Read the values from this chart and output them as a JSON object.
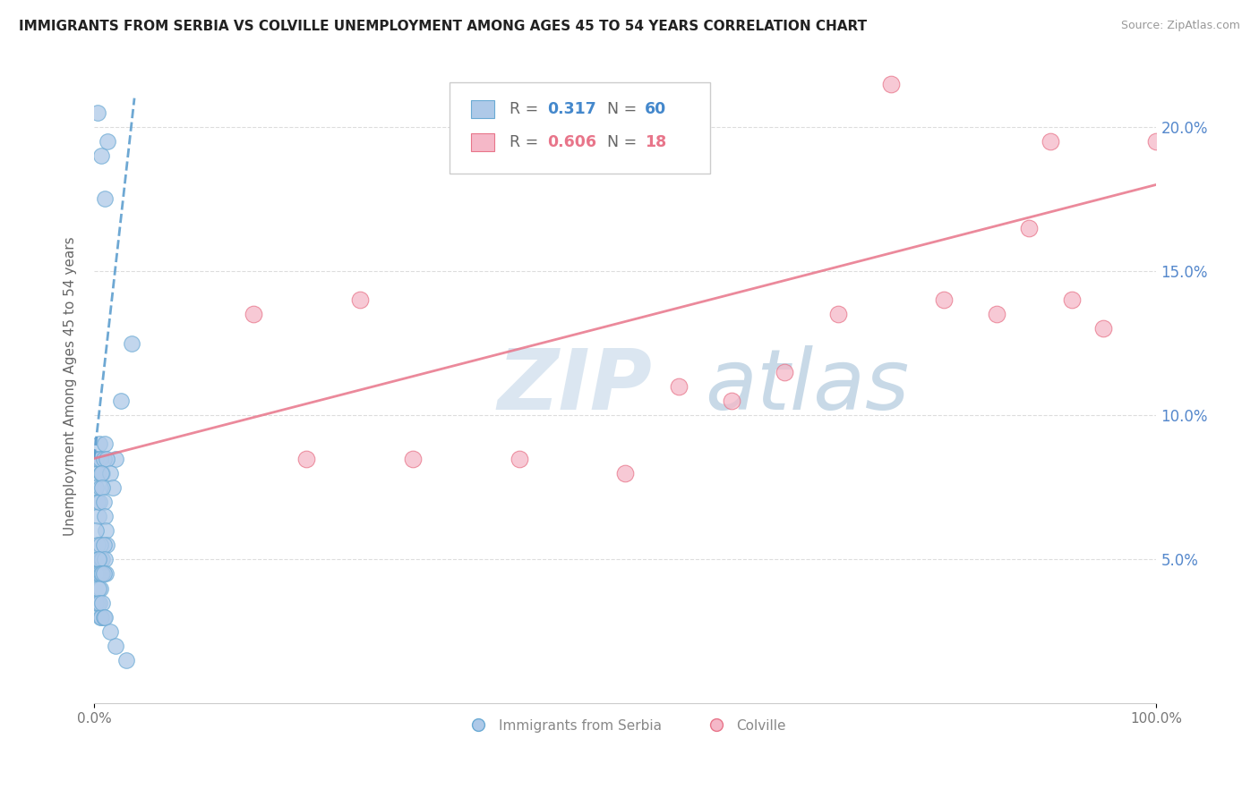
{
  "title": "IMMIGRANTS FROM SERBIA VS COLVILLE UNEMPLOYMENT AMONG AGES 45 TO 54 YEARS CORRELATION CHART",
  "source": "Source: ZipAtlas.com",
  "ylabel": "Unemployment Among Ages 45 to 54 years",
  "xlim": [
    0,
    100
  ],
  "ylim": [
    0,
    22
  ],
  "yticks": [
    5,
    10,
    15,
    20
  ],
  "ytick_labels": [
    "5.0%",
    "10.0%",
    "15.0%",
    "20.0%"
  ],
  "xtick_labels": [
    "0.0%",
    "100.0%"
  ],
  "watermark_zip": "ZIP",
  "watermark_atlas": "atlas",
  "serbia_color": "#aec9e8",
  "serbia_edge_color": "#6aaad4",
  "colville_color": "#f5b8c8",
  "colville_edge_color": "#e8758a",
  "serbia_line_color": "#5599cc",
  "colville_line_color": "#e8758a",
  "serbia_label": "Immigrants from Serbia",
  "colville_label": "Colville",
  "legend_r1_label": "R = ",
  "legend_r1_val": "0.317",
  "legend_n1_label": "N = ",
  "legend_n1_val": "60",
  "legend_r2_label": "R = ",
  "legend_r2_val": "0.606",
  "legend_n2_label": "N = ",
  "legend_n2_val": "18",
  "serbia_scatter_x": [
    0.3,
    0.7,
    1.0,
    1.3,
    2.0,
    2.5,
    3.5,
    0.2,
    0.3,
    0.4,
    0.5,
    0.6,
    0.7,
    0.8,
    0.9,
    1.0,
    1.2,
    1.5,
    1.8,
    0.2,
    0.3,
    0.4,
    0.5,
    0.6,
    0.7,
    0.8,
    0.9,
    1.0,
    1.1,
    1.2,
    0.2,
    0.3,
    0.4,
    0.5,
    0.6,
    0.7,
    0.8,
    0.9,
    1.0,
    1.1,
    0.2,
    0.3,
    0.4,
    0.5,
    0.6,
    0.7,
    0.8,
    0.9,
    0.2,
    0.3,
    0.4,
    0.5,
    0.6,
    0.7,
    0.8,
    0.9,
    1.0,
    1.5,
    2.0,
    3.0
  ],
  "serbia_scatter_y": [
    20.5,
    19.0,
    17.5,
    19.5,
    8.5,
    10.5,
    12.5,
    8.5,
    8.0,
    8.5,
    9.0,
    8.5,
    8.0,
    8.0,
    8.5,
    9.0,
    8.5,
    8.0,
    7.5,
    7.5,
    7.0,
    6.5,
    7.0,
    7.5,
    8.0,
    7.5,
    7.0,
    6.5,
    6.0,
    5.5,
    6.0,
    5.5,
    5.0,
    5.0,
    5.5,
    5.0,
    5.0,
    5.5,
    5.0,
    4.5,
    4.5,
    4.5,
    5.0,
    4.5,
    4.0,
    4.5,
    4.5,
    4.5,
    3.5,
    3.5,
    4.0,
    3.5,
    3.0,
    3.0,
    3.5,
    3.0,
    3.0,
    2.5,
    2.0,
    1.5
  ],
  "colville_scatter_x": [
    15.0,
    20.0,
    40.0,
    50.0,
    55.0,
    60.0,
    65.0,
    70.0,
    75.0,
    80.0,
    85.0,
    88.0,
    90.0,
    92.0,
    95.0,
    100.0,
    30.0,
    25.0
  ],
  "colville_scatter_y": [
    13.5,
    8.5,
    8.5,
    8.0,
    11.0,
    10.5,
    11.5,
    13.5,
    21.5,
    14.0,
    13.5,
    16.5,
    19.5,
    14.0,
    13.0,
    19.5,
    8.5,
    14.0
  ],
  "serbia_trendline_x": [
    0.0,
    3.8
  ],
  "serbia_trendline_y": [
    8.5,
    21.0
  ],
  "colville_trendline_x": [
    0.0,
    100.0
  ],
  "colville_trendline_y": [
    8.5,
    18.0
  ],
  "grid_color": "#dddddd",
  "grid_style": "--",
  "tick_color": "#5588cc",
  "background_color": "#ffffff"
}
